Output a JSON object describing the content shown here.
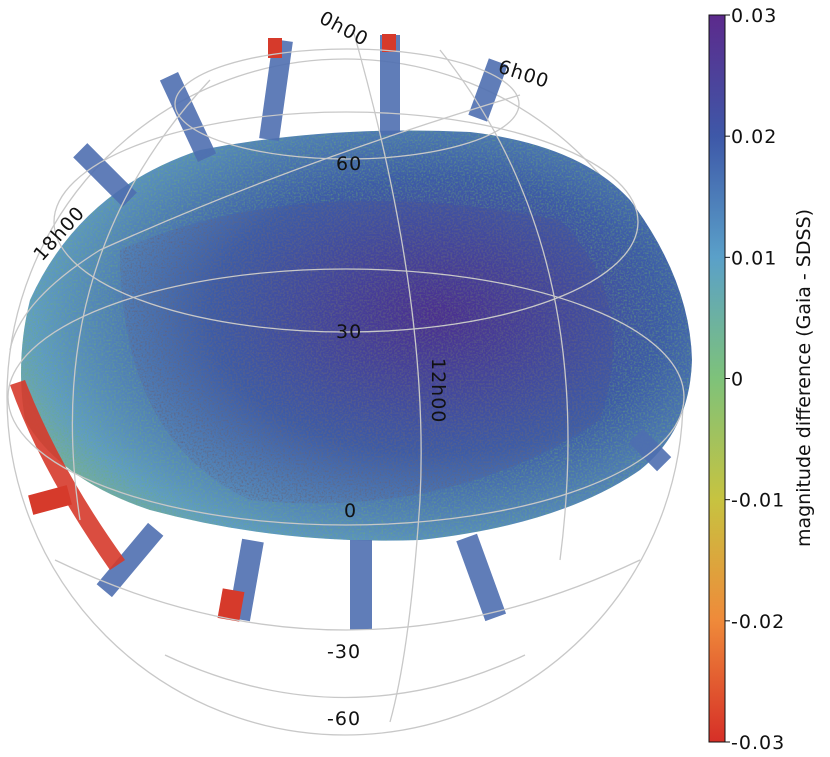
{
  "chart_data": {
    "type": "heatmap",
    "projection": "orthographic sky map (equatorial coordinates)",
    "colorbar": {
      "label": "magnitude difference (Gaia - SDSS)",
      "min": -0.03,
      "max": 0.03,
      "ticks": [
        {
          "value": 0.03,
          "label": "0.03"
        },
        {
          "value": 0.02,
          "label": "0.02"
        },
        {
          "value": 0.01,
          "label": "0.01"
        },
        {
          "value": 0,
          "label": "0"
        },
        {
          "value": -0.01,
          "label": "-0.01"
        },
        {
          "value": -0.02,
          "label": "-0.02"
        },
        {
          "value": -0.03,
          "label": "-0.03"
        }
      ],
      "colormap": [
        "#d62f27",
        "#ef8a3a",
        "#c7c340",
        "#7ec27a",
        "#5aa0c9",
        "#3e58a8",
        "#5c2a8c"
      ]
    },
    "dec_labels": [
      "60",
      "30",
      "0",
      "-30",
      "-60"
    ],
    "ra_labels": [
      "0h00",
      "6h00",
      "12h00",
      "18h00"
    ],
    "grid": true
  }
}
